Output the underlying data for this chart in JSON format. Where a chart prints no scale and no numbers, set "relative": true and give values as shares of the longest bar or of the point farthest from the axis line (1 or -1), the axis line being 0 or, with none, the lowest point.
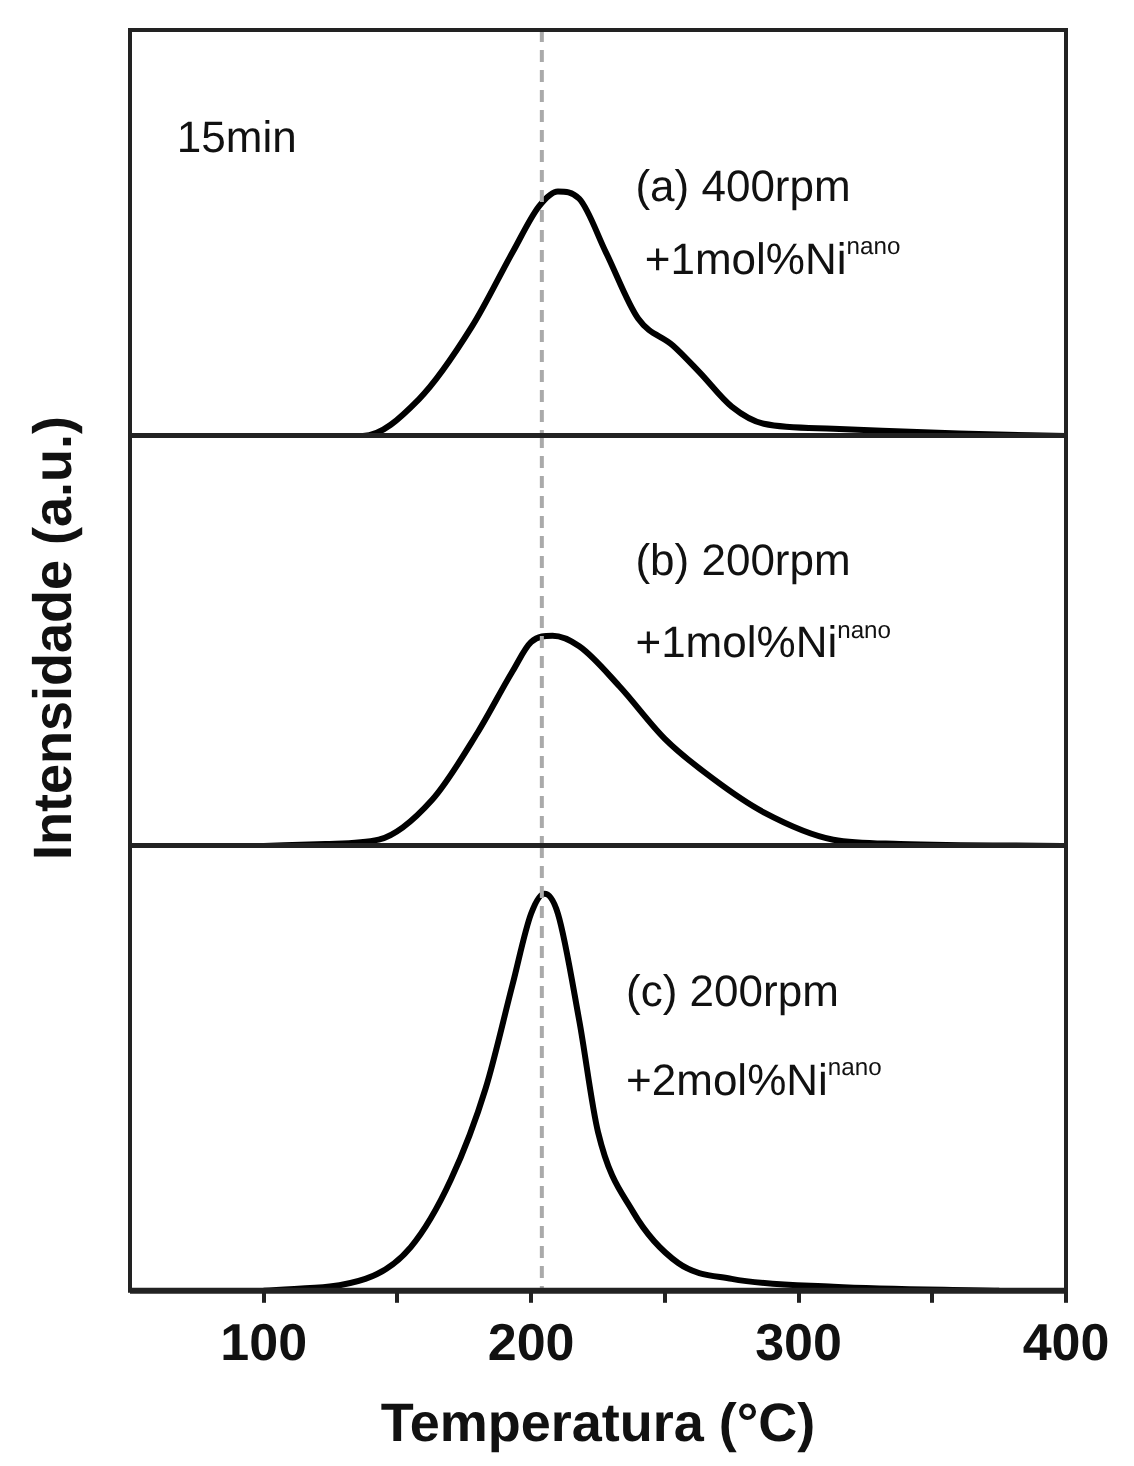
{
  "chart_data": [
    {
      "type": "line",
      "relative": true,
      "xlim": [
        50,
        400
      ],
      "tick_labels": false,
      "marker": "none",
      "line_style": "solid",
      "x": [
        62,
        137,
        158,
        178,
        193,
        203,
        210,
        218,
        228,
        240,
        253,
        263,
        275,
        287,
        313,
        360,
        400
      ],
      "series": [
        {
          "color": "#000000",
          "values": [
            0,
            0,
            0.15,
            0.45,
            0.75,
            0.94,
            1,
            0.97,
            0.75,
            0.48,
            0.37,
            0.26,
            0.12,
            0.05,
            0.03,
            0.01,
            0
          ]
        }
      ],
      "ref_lines": [
        {
          "axis": "x",
          "value": 204,
          "color": "#aaaaaa",
          "line_style": "dashed"
        }
      ],
      "annotations": [
        "15min",
        "(a) 400rpm",
        "+1mol%Ni$^{nano}$"
      ]
    },
    {
      "type": "line",
      "relative": true,
      "xlim": [
        50,
        400
      ],
      "tick_labels": false,
      "marker": "none",
      "line_style": "solid",
      "ylabel": "Intensidade (a.u.)",
      "x": [
        100,
        123,
        143,
        163,
        180,
        193,
        200,
        208,
        218,
        233,
        250,
        268,
        287,
        313,
        338,
        400
      ],
      "series": [
        {
          "color": "#000000",
          "values": [
            0,
            0.01,
            0.03,
            0.22,
            0.54,
            0.83,
            0.97,
            1,
            0.95,
            0.76,
            0.51,
            0.32,
            0.16,
            0.03,
            0.01,
            0
          ]
        }
      ],
      "ref_lines": [
        {
          "axis": "x",
          "value": 204,
          "color": "#aaaaaa",
          "line_style": "dashed"
        }
      ],
      "annotations": [
        "(b) 200rpm",
        "+1mol%Ni$^{nano}$"
      ]
    },
    {
      "type": "line",
      "relative": true,
      "xlim": [
        50,
        400
      ],
      "xticks": [
        100,
        {
          "value": 150,
          "label": null
        },
        200,
        {
          "value": 250,
          "label": null
        },
        300,
        {
          "value": 350,
          "label": null
        },
        400
      ],
      "tick_labels": "x",
      "marker": "none",
      "line_style": "solid",
      "xlabel": "Temperatura (°C)",
      "x": [
        100,
        138,
        155,
        170,
        183,
        193,
        200,
        205,
        210,
        218,
        225,
        238,
        255,
        275,
        313,
        375
      ],
      "series": [
        {
          "color": "#000000",
          "values": [
            0,
            0.03,
            0.11,
            0.28,
            0.51,
            0.77,
            0.95,
            1,
            0.95,
            0.68,
            0.4,
            0.2,
            0.07,
            0.03,
            0.01,
            0
          ]
        }
      ],
      "ref_lines": [
        {
          "axis": "x",
          "value": 204,
          "color": "#aaaaaa",
          "line_style": "dashed"
        }
      ],
      "annotations": [
        "(c) 200rpm",
        "+2mol%Ni$^{nano}$"
      ]
    }
  ]
}
